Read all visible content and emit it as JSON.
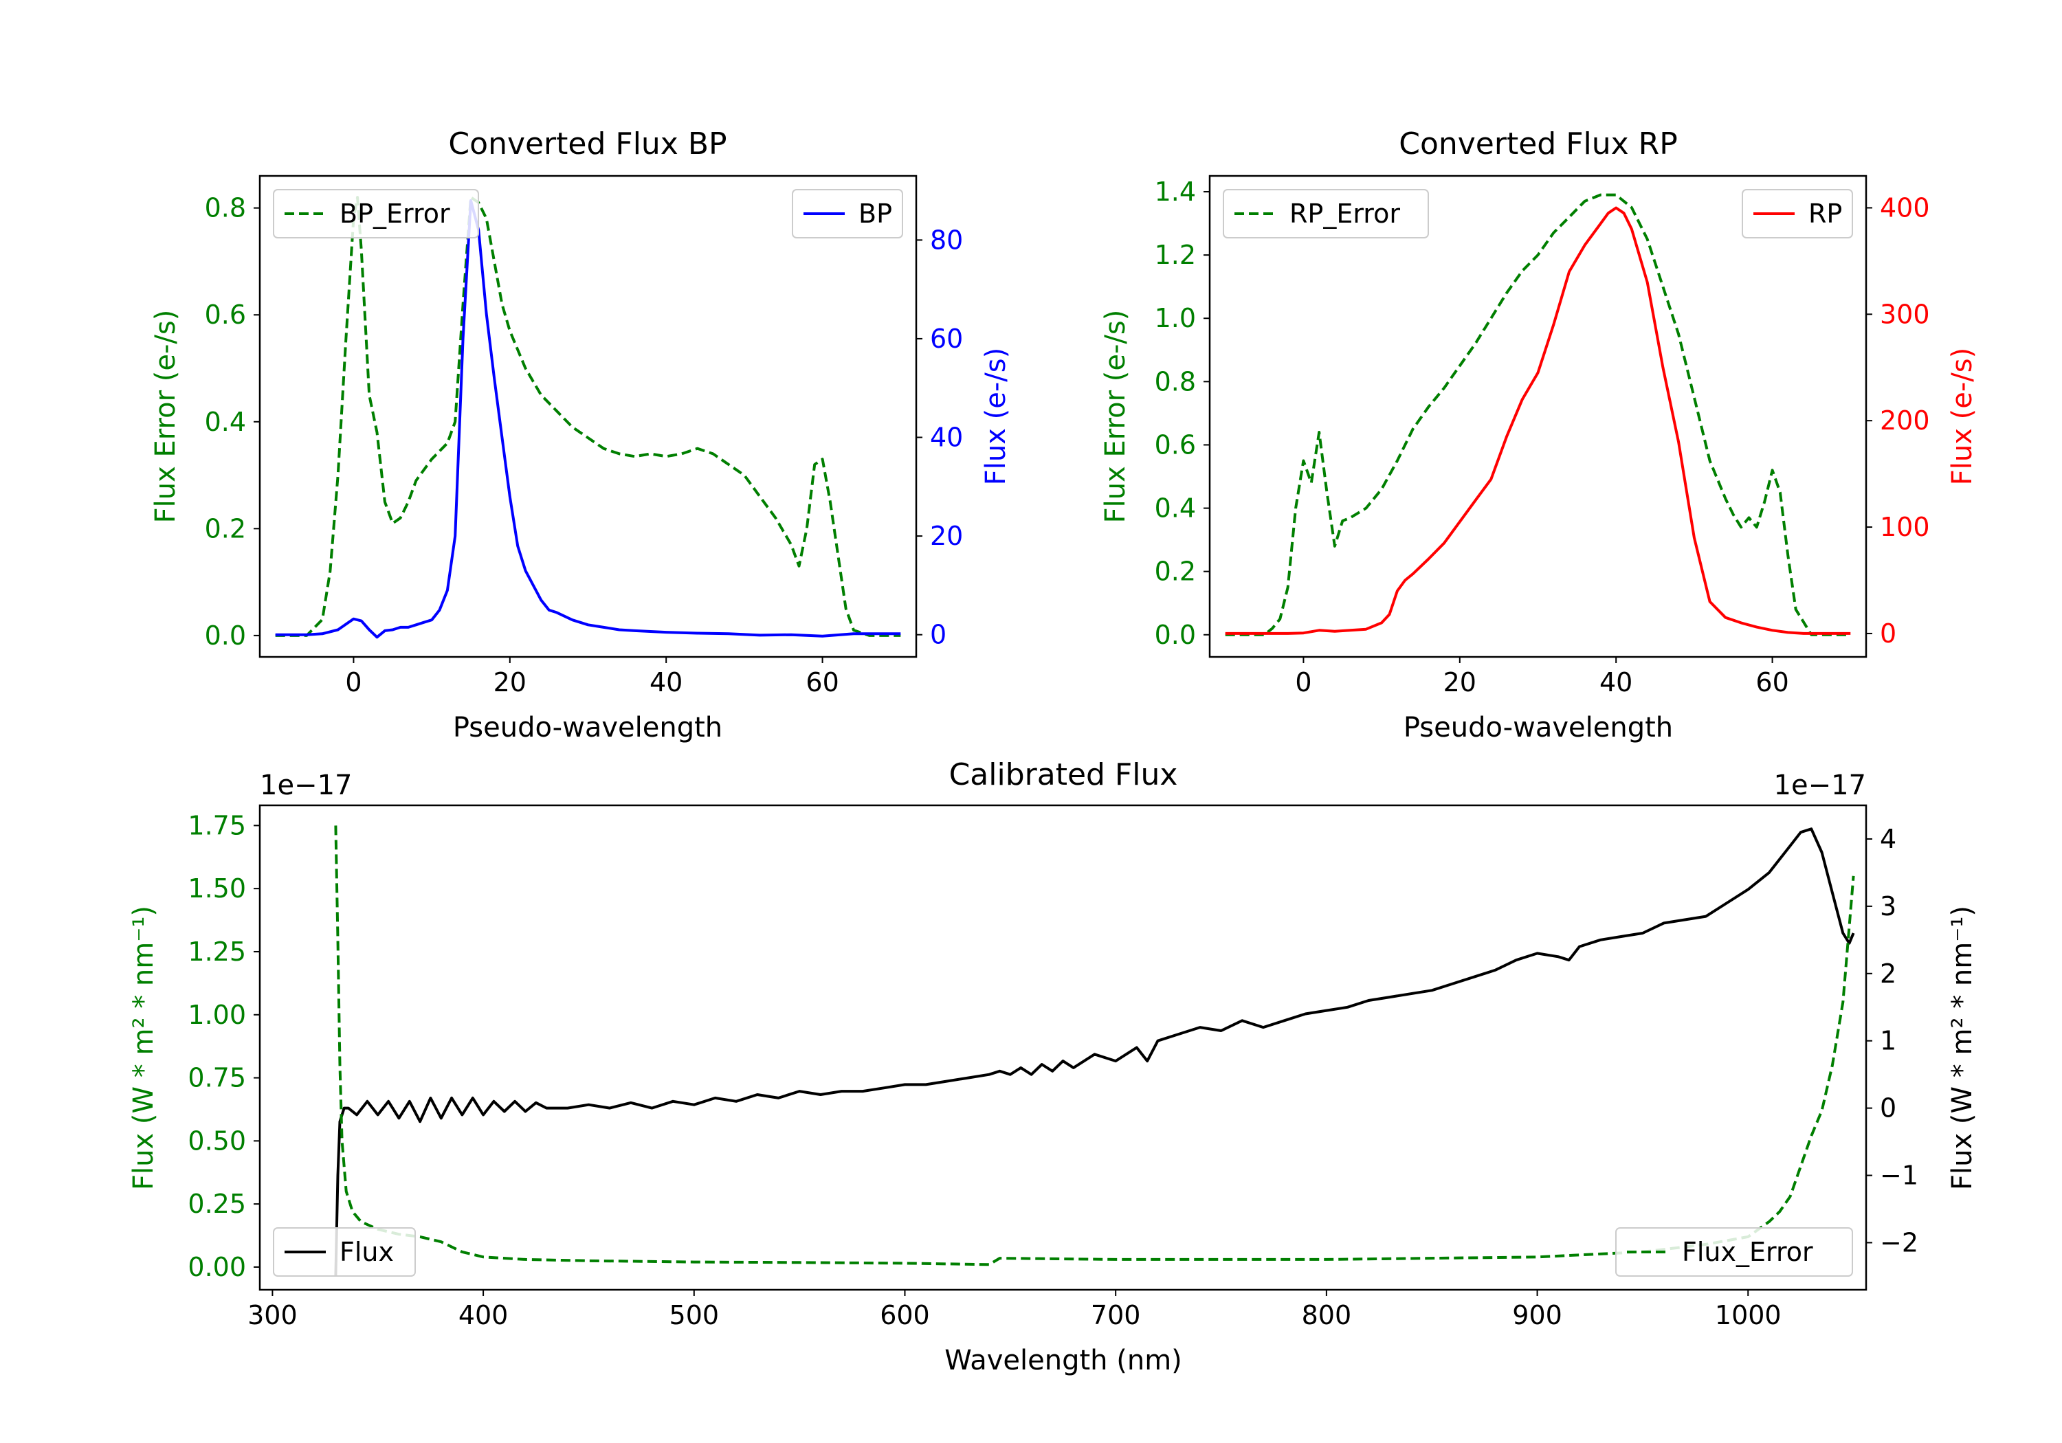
{
  "figure": {
    "colors": {
      "green": "#007f00",
      "blue": "#0000ff",
      "red": "#ff0000",
      "black": "#000000"
    }
  },
  "chart_data": [
    {
      "id": "bp",
      "type": "line",
      "title": "Converted Flux BP",
      "xlabel": "Pseudo-wavelength",
      "ylabel_left": "Flux Error (e-/s)",
      "ylabel_right": "Flux (e-/s)",
      "xlim": [
        -12,
        72
      ],
      "ylim_left": [
        -0.04,
        0.86
      ],
      "ylim_right": [
        -4.5,
        93
      ],
      "xticks": [
        0,
        20,
        40,
        60
      ],
      "xtick_labels": [
        "0",
        "20",
        "40",
        "60"
      ],
      "yticks_left": [
        0.0,
        0.2,
        0.4,
        0.6,
        0.8
      ],
      "ytick_labels_left": [
        "0.0",
        "0.2",
        "0.4",
        "0.6",
        "0.8"
      ],
      "yticks_right": [
        0,
        20,
        40,
        60,
        80
      ],
      "ytick_labels_right": [
        "0",
        "20",
        "40",
        "60",
        "80"
      ],
      "left_color": "green",
      "right_color": "blue",
      "legends": [
        {
          "position": "upper-left",
          "label": "BP_Error",
          "style": "dashed",
          "color": "green"
        },
        {
          "position": "upper-right",
          "label": "BP",
          "style": "solid",
          "color": "blue"
        }
      ],
      "series": [
        {
          "name": "BP_Error",
          "axis": "left",
          "color": "green",
          "style": "dashed",
          "x": [
            -10,
            -6,
            -4,
            -3,
            -2,
            -1,
            0,
            0.5,
            1,
            2,
            3,
            4,
            5,
            6,
            7,
            8,
            10,
            12,
            13,
            14,
            15,
            16,
            17,
            18,
            19,
            20,
            22,
            24,
            26,
            28,
            30,
            32,
            34,
            36,
            38,
            40,
            42,
            44,
            46,
            48,
            50,
            52,
            54,
            56,
            57,
            58,
            59,
            60,
            61,
            62,
            63,
            64,
            66,
            70
          ],
          "y": [
            0.0,
            0.0,
            0.03,
            0.12,
            0.3,
            0.55,
            0.78,
            0.82,
            0.72,
            0.45,
            0.38,
            0.25,
            0.21,
            0.22,
            0.25,
            0.29,
            0.33,
            0.36,
            0.4,
            0.62,
            0.82,
            0.81,
            0.78,
            0.7,
            0.62,
            0.57,
            0.5,
            0.45,
            0.42,
            0.39,
            0.37,
            0.35,
            0.34,
            0.335,
            0.34,
            0.335,
            0.34,
            0.35,
            0.34,
            0.32,
            0.3,
            0.26,
            0.22,
            0.17,
            0.13,
            0.2,
            0.32,
            0.33,
            0.25,
            0.15,
            0.05,
            0.01,
            0.0,
            0.0
          ]
        },
        {
          "name": "BP",
          "axis": "right",
          "color": "blue",
          "style": "solid",
          "x": [
            -10,
            -6,
            -4,
            -2,
            0,
            1,
            2,
            3,
            4,
            5,
            6,
            7,
            8,
            9,
            10,
            11,
            12,
            13,
            14,
            15,
            16,
            17,
            18,
            19,
            20,
            21,
            22,
            23,
            24,
            25,
            26,
            28,
            30,
            32,
            34,
            36,
            40,
            44,
            48,
            52,
            56,
            60,
            64,
            70
          ],
          "y": [
            0.0,
            0.0,
            0.2,
            1.0,
            3.2,
            2.8,
            1.0,
            -0.5,
            0.8,
            1.0,
            1.5,
            1.5,
            2.0,
            2.5,
            3.0,
            5.0,
            9.0,
            20.0,
            60.0,
            88.0,
            82.0,
            65.0,
            52.0,
            40.0,
            28.0,
            18.0,
            13.0,
            10.0,
            7.0,
            5.0,
            4.5,
            3.0,
            2.0,
            1.5,
            1.0,
            0.8,
            0.5,
            0.3,
            0.2,
            -0.1,
            0.0,
            -0.3,
            0.2,
            0.2
          ]
        }
      ]
    },
    {
      "id": "rp",
      "type": "line",
      "title": "Converted Flux RP",
      "xlabel": "Pseudo-wavelength",
      "ylabel_left": "Flux Error (e-/s)",
      "ylabel_right": "Flux (e-/s)",
      "xlim": [
        -12,
        72
      ],
      "ylim_left": [
        -0.07,
        1.45
      ],
      "ylim_right": [
        -22,
        430
      ],
      "xticks": [
        0,
        20,
        40,
        60
      ],
      "xtick_labels": [
        "0",
        "20",
        "40",
        "60"
      ],
      "yticks_left": [
        0.0,
        0.2,
        0.4,
        0.6,
        0.8,
        1.0,
        1.2,
        1.4
      ],
      "ytick_labels_left": [
        "0.0",
        "0.2",
        "0.4",
        "0.6",
        "0.8",
        "1.0",
        "1.2",
        "1.4"
      ],
      "yticks_right": [
        0,
        100,
        200,
        300,
        400
      ],
      "ytick_labels_right": [
        "0",
        "100",
        "200",
        "300",
        "400"
      ],
      "left_color": "green",
      "right_color": "red",
      "legends": [
        {
          "position": "upper-left",
          "label": "RP_Error",
          "style": "dashed",
          "color": "green"
        },
        {
          "position": "upper-right",
          "label": "RP",
          "style": "solid",
          "color": "red"
        }
      ],
      "series": [
        {
          "name": "RP_Error",
          "axis": "left",
          "color": "green",
          "style": "dashed",
          "x": [
            -10,
            -5,
            -4,
            -3,
            -2,
            -1,
            0,
            1,
            2,
            3,
            4,
            5,
            6,
            8,
            10,
            12,
            14,
            16,
            18,
            20,
            22,
            24,
            26,
            28,
            30,
            32,
            34,
            36,
            38,
            40,
            42,
            44,
            46,
            48,
            50,
            52,
            54,
            55,
            56,
            57,
            58,
            59,
            60,
            61,
            62,
            63,
            65,
            70
          ],
          "y": [
            0.0,
            0.0,
            0.02,
            0.05,
            0.15,
            0.4,
            0.55,
            0.48,
            0.64,
            0.45,
            0.28,
            0.36,
            0.37,
            0.4,
            0.46,
            0.55,
            0.65,
            0.72,
            0.78,
            0.85,
            0.92,
            1.0,
            1.08,
            1.15,
            1.2,
            1.27,
            1.32,
            1.37,
            1.39,
            1.39,
            1.35,
            1.25,
            1.1,
            0.95,
            0.75,
            0.55,
            0.43,
            0.38,
            0.34,
            0.37,
            0.34,
            0.42,
            0.52,
            0.45,
            0.25,
            0.08,
            0.0,
            0.0
          ]
        },
        {
          "name": "RP",
          "axis": "right",
          "color": "red",
          "style": "solid",
          "x": [
            -10,
            -2,
            0,
            2,
            4,
            6,
            8,
            10,
            11,
            12,
            13,
            14,
            16,
            18,
            20,
            22,
            24,
            26,
            28,
            30,
            32,
            34,
            36,
            38,
            39,
            40,
            41,
            42,
            44,
            46,
            48,
            50,
            52,
            54,
            56,
            58,
            60,
            62,
            64,
            70
          ],
          "y": [
            0.0,
            0.0,
            0.5,
            3.0,
            2.0,
            3.0,
            4.0,
            10.0,
            18.0,
            40.0,
            50.0,
            56.0,
            70.0,
            85.0,
            105.0,
            125.0,
            145.0,
            185.0,
            220.0,
            245.0,
            290.0,
            340.0,
            365.0,
            385.0,
            395.0,
            400.0,
            395.0,
            380.0,
            330.0,
            250.0,
            180.0,
            90.0,
            30.0,
            15.0,
            10.0,
            6.0,
            3.0,
            1.0,
            0.0,
            0.0
          ]
        }
      ]
    },
    {
      "id": "cal",
      "type": "line",
      "title": "Calibrated Flux",
      "xlabel": "Wavelength (nm)",
      "ylabel_left": "Flux (W * m² * nm⁻¹)",
      "ylabel_right": "Flux (W * m² * nm⁻¹)",
      "offset_left": "1e−17",
      "offset_right": "1e−17",
      "xlim": [
        294,
        1056
      ],
      "ylim_left": [
        -0.09,
        1.83
      ],
      "ylim_right": [
        -2.7,
        4.5
      ],
      "xticks": [
        300,
        400,
        500,
        600,
        700,
        800,
        900,
        1000
      ],
      "xtick_labels": [
        "300",
        "400",
        "500",
        "600",
        "700",
        "800",
        "900",
        "1000"
      ],
      "yticks_left": [
        0.0,
        0.25,
        0.5,
        0.75,
        1.0,
        1.25,
        1.5,
        1.75
      ],
      "ytick_labels_left": [
        "0.00",
        "0.25",
        "0.50",
        "0.75",
        "1.00",
        "1.25",
        "1.50",
        "1.75"
      ],
      "yticks_right": [
        -2,
        -1,
        0,
        1,
        2,
        3,
        4
      ],
      "ytick_labels_right": [
        "−2",
        "−1",
        "0",
        "1",
        "2",
        "3",
        "4"
      ],
      "left_color": "green",
      "right_color": "black",
      "legends": [
        {
          "position": "lower-left",
          "label": "Flux",
          "style": "solid",
          "color": "black"
        },
        {
          "position": "lower-right",
          "label": "Flux_Error",
          "style": "dashed",
          "color": "green"
        }
      ],
      "series": [
        {
          "name": "Flux",
          "axis": "right",
          "color": "black",
          "style": "solid",
          "x": [
            330,
            331,
            332,
            334,
            336,
            340,
            345,
            350,
            355,
            360,
            365,
            370,
            375,
            380,
            385,
            390,
            395,
            400,
            405,
            410,
            415,
            420,
            425,
            430,
            440,
            450,
            460,
            470,
            480,
            490,
            500,
            510,
            520,
            530,
            540,
            550,
            560,
            570,
            580,
            590,
            600,
            610,
            620,
            630,
            640,
            645,
            650,
            655,
            660,
            665,
            670,
            675,
            680,
            690,
            700,
            710,
            715,
            720,
            730,
            740,
            750,
            760,
            770,
            780,
            790,
            800,
            810,
            820,
            830,
            840,
            850,
            860,
            870,
            880,
            890,
            900,
            910,
            915,
            920,
            930,
            940,
            950,
            960,
            970,
            980,
            990,
            1000,
            1010,
            1020,
            1025,
            1030,
            1035,
            1040,
            1045,
            1048,
            1050
          ],
          "y": [
            -2.5,
            -1.0,
            -0.2,
            0.0,
            0.0,
            -0.1,
            0.1,
            -0.1,
            0.1,
            -0.15,
            0.1,
            -0.2,
            0.15,
            -0.15,
            0.15,
            -0.1,
            0.15,
            -0.1,
            0.1,
            -0.05,
            0.1,
            -0.05,
            0.08,
            0.0,
            0.0,
            0.05,
            0.0,
            0.08,
            0.0,
            0.1,
            0.05,
            0.15,
            0.1,
            0.2,
            0.15,
            0.25,
            0.2,
            0.25,
            0.25,
            0.3,
            0.35,
            0.35,
            0.4,
            0.45,
            0.5,
            0.55,
            0.5,
            0.6,
            0.5,
            0.65,
            0.55,
            0.7,
            0.6,
            0.8,
            0.7,
            0.9,
            0.7,
            1.0,
            1.1,
            1.2,
            1.15,
            1.3,
            1.2,
            1.3,
            1.4,
            1.45,
            1.5,
            1.6,
            1.65,
            1.7,
            1.75,
            1.85,
            1.95,
            2.05,
            2.2,
            2.3,
            2.25,
            2.2,
            2.4,
            2.5,
            2.55,
            2.6,
            2.75,
            2.8,
            2.85,
            3.05,
            3.25,
            3.5,
            3.9,
            4.1,
            4.15,
            3.8,
            3.2,
            2.6,
            2.45,
            2.6
          ]
        },
        {
          "name": "Flux_Error",
          "axis": "left",
          "color": "green",
          "style": "dashed",
          "x": [
            330,
            331,
            332,
            333,
            335,
            338,
            342,
            350,
            360,
            370,
            380,
            390,
            400,
            420,
            450,
            500,
            550,
            600,
            640,
            645,
            700,
            800,
            900,
            950,
            980,
            1000,
            1010,
            1015,
            1020,
            1025,
            1030,
            1035,
            1040,
            1045,
            1048,
            1050
          ],
          "y": [
            1.75,
            1.3,
            0.8,
            0.5,
            0.3,
            0.22,
            0.18,
            0.15,
            0.13,
            0.12,
            0.1,
            0.06,
            0.04,
            0.03,
            0.025,
            0.02,
            0.018,
            0.015,
            0.01,
            0.035,
            0.03,
            0.03,
            0.04,
            0.06,
            0.09,
            0.12,
            0.18,
            0.22,
            0.28,
            0.4,
            0.52,
            0.62,
            0.8,
            1.05,
            1.35,
            1.55
          ]
        }
      ]
    }
  ]
}
